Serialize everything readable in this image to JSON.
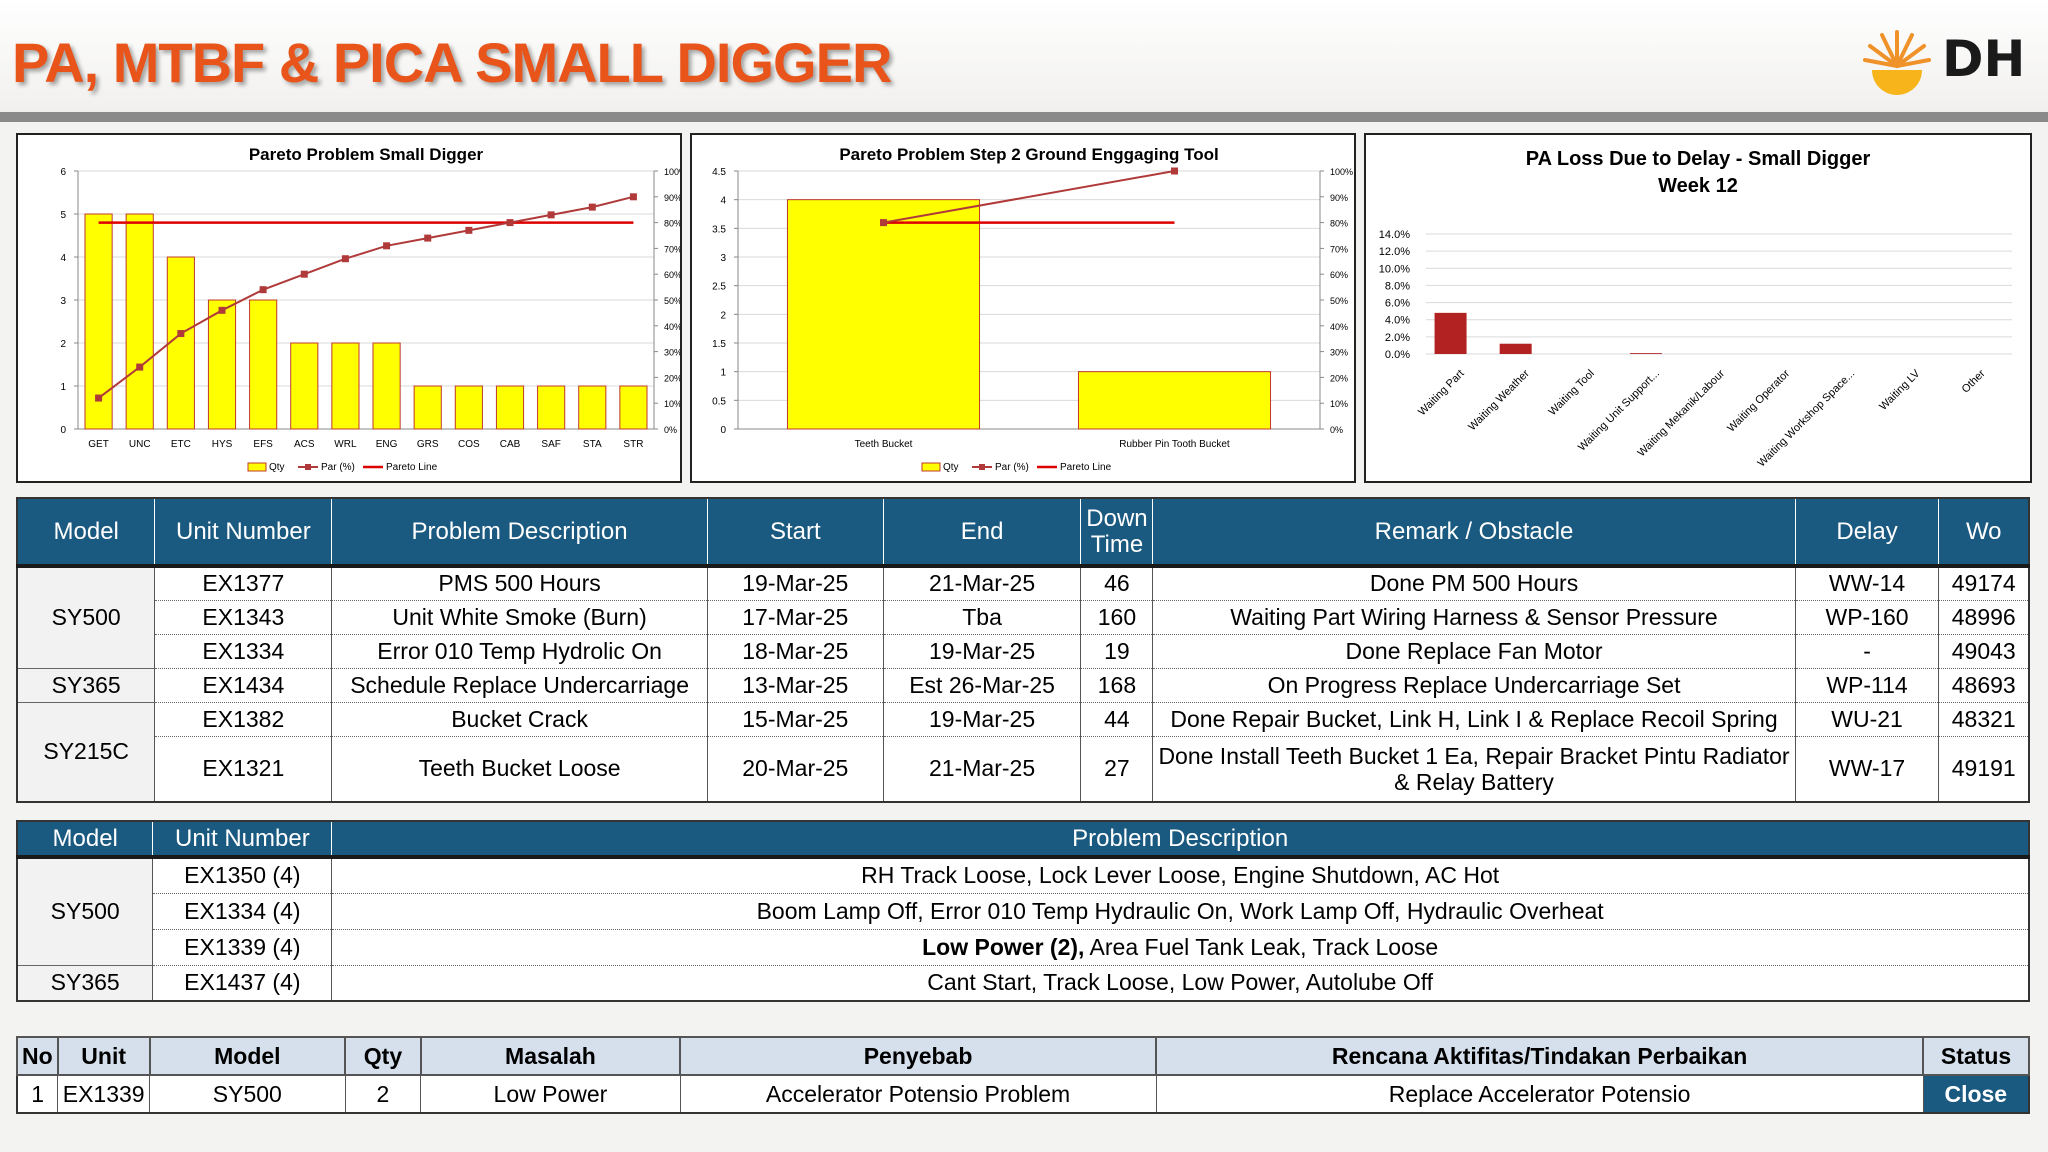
{
  "header": {
    "title": "PA, MTBF & PICA SMALL DIGGER",
    "logo_text": "DH"
  },
  "colors": {
    "accent": "#e8541a",
    "table_header": "#1b5a80",
    "bar": "#ffff00",
    "line": "#c0392b"
  },
  "charts": {
    "chart1": {
      "title": "Pareto Problem Small Digger",
      "yticks": [
        "0",
        "1",
        "2",
        "3",
        "4",
        "5",
        "6"
      ],
      "y2ticks": [
        "0%",
        "10%",
        "20%",
        "30%",
        "40%",
        "50%",
        "60%",
        "70%",
        "80%",
        "90%",
        "100%"
      ],
      "legend": [
        "Qty",
        "Par (%)",
        "Pareto Line"
      ]
    },
    "chart2": {
      "title": "Pareto Problem Step 2 Ground Enggaging Tool",
      "yticks": [
        "0",
        "0.5",
        "1",
        "1.5",
        "2",
        "2.5",
        "3",
        "3.5",
        "4",
        "4.5"
      ],
      "y2ticks": [
        "0%",
        "10%",
        "20%",
        "30%",
        "40%",
        "50%",
        "60%",
        "70%",
        "80%",
        "90%",
        "100%"
      ],
      "legend": [
        "Qty",
        "Par (%)",
        "Pareto Line"
      ]
    },
    "chart3": {
      "title_line1": "PA Loss Due to Delay - Small Digger",
      "title_line2": "Week 12",
      "yticks": [
        "0.0%",
        "2.0%",
        "4.0%",
        "6.0%",
        "8.0%",
        "10.0%",
        "12.0%",
        "14.0%"
      ]
    }
  },
  "chart_data": [
    {
      "type": "bar",
      "title": "Pareto Problem Small Digger",
      "categories": [
        "GET",
        "UNC",
        "ETC",
        "HYS",
        "EFS",
        "ACS",
        "WRL",
        "ENG",
        "GRS",
        "COS",
        "CAB",
        "SAF",
        "STA",
        "STR"
      ],
      "series": [
        {
          "name": "Qty",
          "values": [
            5,
            5,
            4,
            3,
            3,
            2,
            2,
            2,
            1,
            1,
            1,
            1,
            1,
            1
          ]
        },
        {
          "name": "Par (%)",
          "values": [
            12,
            24,
            37,
            46,
            54,
            60,
            66,
            71,
            74,
            77,
            80,
            83,
            86,
            90
          ]
        },
        {
          "name": "Pareto Line",
          "values": [
            80,
            80,
            80,
            80,
            80,
            80,
            80,
            80,
            80,
            80,
            80,
            80,
            80,
            80
          ]
        }
      ],
      "ylim": [
        0,
        6
      ],
      "y2lim": [
        0,
        100
      ]
    },
    {
      "type": "bar",
      "title": "Pareto Problem Step 2 Ground Enggaging Tool",
      "categories": [
        "Teeth Bucket",
        "Rubber Pin Tooth Bucket"
      ],
      "series": [
        {
          "name": "Qty",
          "values": [
            4,
            1
          ]
        },
        {
          "name": "Par (%)",
          "values": [
            80,
            100
          ]
        },
        {
          "name": "Pareto Line",
          "values": [
            80,
            80
          ]
        }
      ],
      "ylim": [
        0,
        4.5
      ],
      "y2lim": [
        0,
        100
      ]
    },
    {
      "type": "bar",
      "title": "PA Loss Due to Delay - Small Digger Week 12",
      "categories": [
        "Waiting Part",
        "Waiting Weather",
        "Waiting Tool",
        "Waiting Unit Support...",
        "Waiting Mekanik/Labour",
        "Waiting Operator",
        "Waiting Workshop Space...",
        "Waiting LV",
        "Other"
      ],
      "values": [
        4.8,
        1.2,
        0,
        0.1,
        0,
        0,
        0,
        0,
        0
      ],
      "ylim": [
        0,
        14
      ]
    }
  ],
  "table1": {
    "headers": [
      "Model",
      "Unit Number",
      "Problem Description",
      "Start",
      "End",
      "Down Time",
      "Remark / Obstacle",
      "Delay",
      "Wo"
    ],
    "rows": [
      {
        "model": "SY500",
        "unit": "EX1377",
        "desc": "PMS 500 Hours",
        "start": "19-Mar-25",
        "end": "21-Mar-25",
        "down": "46",
        "remark": "Done PM 500 Hours",
        "delay": "WW-14",
        "wo": "49174"
      },
      {
        "model": "",
        "unit": "EX1343",
        "desc": "Unit White Smoke (Burn)",
        "start": "17-Mar-25",
        "end": "Tba",
        "down": "160",
        "remark": "Waiting Part Wiring Harness & Sensor Pressure",
        "delay": "WP-160",
        "wo": "48996"
      },
      {
        "model": "",
        "unit": "EX1334",
        "desc": "Error 010 Temp Hydrolic On",
        "start": "18-Mar-25",
        "end": "19-Mar-25",
        "down": "19",
        "remark": "Done Replace Fan Motor",
        "delay": "-",
        "wo": "49043"
      },
      {
        "model": "SY365",
        "unit": "EX1434",
        "desc": "Schedule Replace Undercarriage",
        "start": "13-Mar-25",
        "end": "Est 26-Mar-25",
        "down": "168",
        "remark": "On Progress Replace Undercarriage Set",
        "delay": "WP-114",
        "wo": "48693"
      },
      {
        "model": "SY215C",
        "unit": "EX1382",
        "desc": "Bucket Crack",
        "start": "15-Mar-25",
        "end": "19-Mar-25",
        "down": "44",
        "remark": "Done Repair Bucket, Link H, Link I & Replace Recoil Spring",
        "delay": "WU-21",
        "wo": "48321"
      },
      {
        "model": "",
        "unit": "EX1321",
        "desc": "Teeth Bucket Loose",
        "start": "20-Mar-25",
        "end": "21-Mar-25",
        "down": "27",
        "remark": "Done Install Teeth Bucket 1 Ea, Repair Bracket Pintu Radiator & Relay Battery",
        "delay": "WW-17",
        "wo": "49191"
      }
    ]
  },
  "table2": {
    "headers": [
      "Model",
      "Unit Number",
      "Problem Description"
    ],
    "rows": [
      {
        "model": "SY500",
        "unit": "EX1350 (4)",
        "desc": "RH Track Loose, Lock Lever Loose, Engine Shutdown, AC Hot"
      },
      {
        "model": "",
        "unit": "EX1334 (4)",
        "desc": "Boom Lamp Off, Error 010 Temp Hydraulic On, Work Lamp Off, Hydraulic Overheat"
      },
      {
        "model": "",
        "unit": "EX1339 (4)",
        "desc_bold": "Low Power (2),",
        "desc": " Area Fuel Tank Leak, Track Loose"
      },
      {
        "model": "SY365",
        "unit": "EX1437 (4)",
        "desc": "Cant Start, Track Loose, Low Power, Autolube Off"
      }
    ]
  },
  "table3": {
    "headers": [
      "No",
      "Unit",
      "Model",
      "Qty",
      "Masalah",
      "Penyebab",
      "Rencana Aktifitas/Tindakan Perbaikan",
      "Status"
    ],
    "rows": [
      {
        "no": "1",
        "unit": "EX1339",
        "model": "SY500",
        "qty": "2",
        "masalah": "Low Power",
        "penyebab": "Accelerator Potensio Problem",
        "rencana": "Replace Accelerator Potensio",
        "status": "Close"
      }
    ]
  }
}
